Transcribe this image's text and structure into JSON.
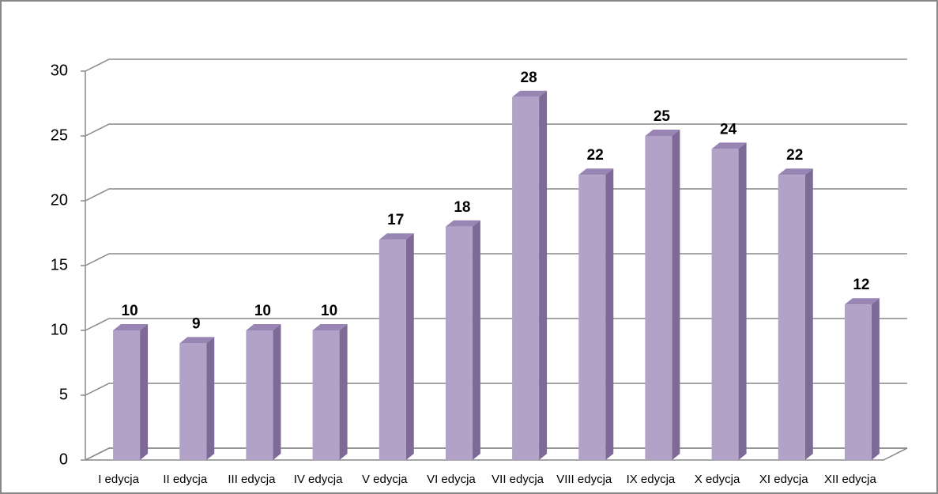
{
  "chart_data": {
    "type": "bar3d",
    "categories": [
      "I edycja",
      "II edycja",
      "III edycja",
      "IV edycja",
      "V edycja",
      "VI edycja",
      "VII edycja",
      "VIII edycja",
      "IX edycja",
      "X edycja",
      "XI edycja",
      "XII edycja"
    ],
    "values": [
      10,
      9,
      10,
      10,
      17,
      18,
      28,
      22,
      25,
      24,
      22,
      12
    ],
    "color": "#b3a2c7",
    "ylim": [
      0,
      30
    ],
    "yticks": [
      0,
      5,
      10,
      15,
      20,
      25,
      30
    ],
    "grid": true,
    "data_labels": true
  }
}
